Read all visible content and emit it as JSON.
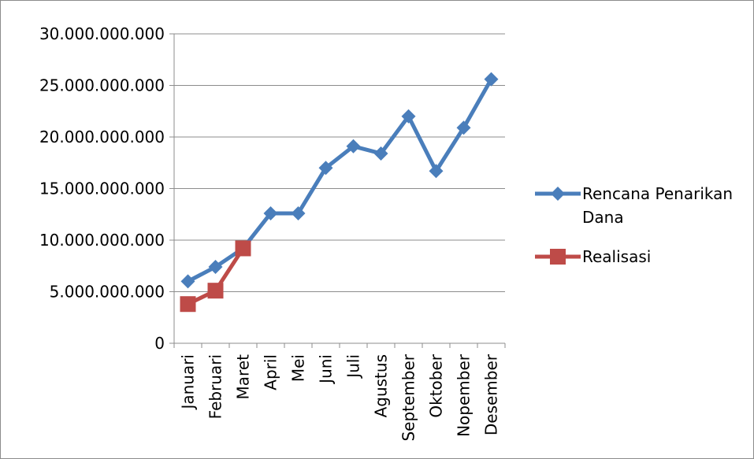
{
  "chart_data": {
    "type": "line",
    "title": "",
    "xlabel": "",
    "ylabel": "",
    "categories": [
      "Januari",
      "Februari",
      "Maret",
      "April",
      "Mei",
      "Juni",
      "Juli",
      "Agustus",
      "September",
      "Oktober",
      "Nopember",
      "Desember"
    ],
    "y_ticks": [
      "0",
      "5.000.000.000",
      "10.000.000.000",
      "15.000.000.000",
      "20.000.000.000",
      "25.000.000.000",
      "30.000.000.000"
    ],
    "ylim": [
      0,
      30000000000
    ],
    "y_tick_step": 5000000000,
    "grid": "horizontal",
    "legend_position": "right",
    "series": [
      {
        "name": "Rencana Penarikan Dana",
        "legend_lines": [
          "Rencana Penarikan",
          "Dana"
        ],
        "color": "#4a7ebb",
        "marker": "diamond",
        "values": [
          6000000000,
          7400000000,
          9200000000,
          12600000000,
          12600000000,
          17000000000,
          19100000000,
          18400000000,
          22000000000,
          16700000000,
          20900000000,
          25600000000
        ]
      },
      {
        "name": "Realisasi",
        "legend_lines": [
          "Realisasi"
        ],
        "color": "#be4b48",
        "marker": "square",
        "values": [
          3800000000,
          5100000000,
          9200000000,
          null,
          null,
          null,
          null,
          null,
          null,
          null,
          null,
          null
        ]
      }
    ]
  }
}
